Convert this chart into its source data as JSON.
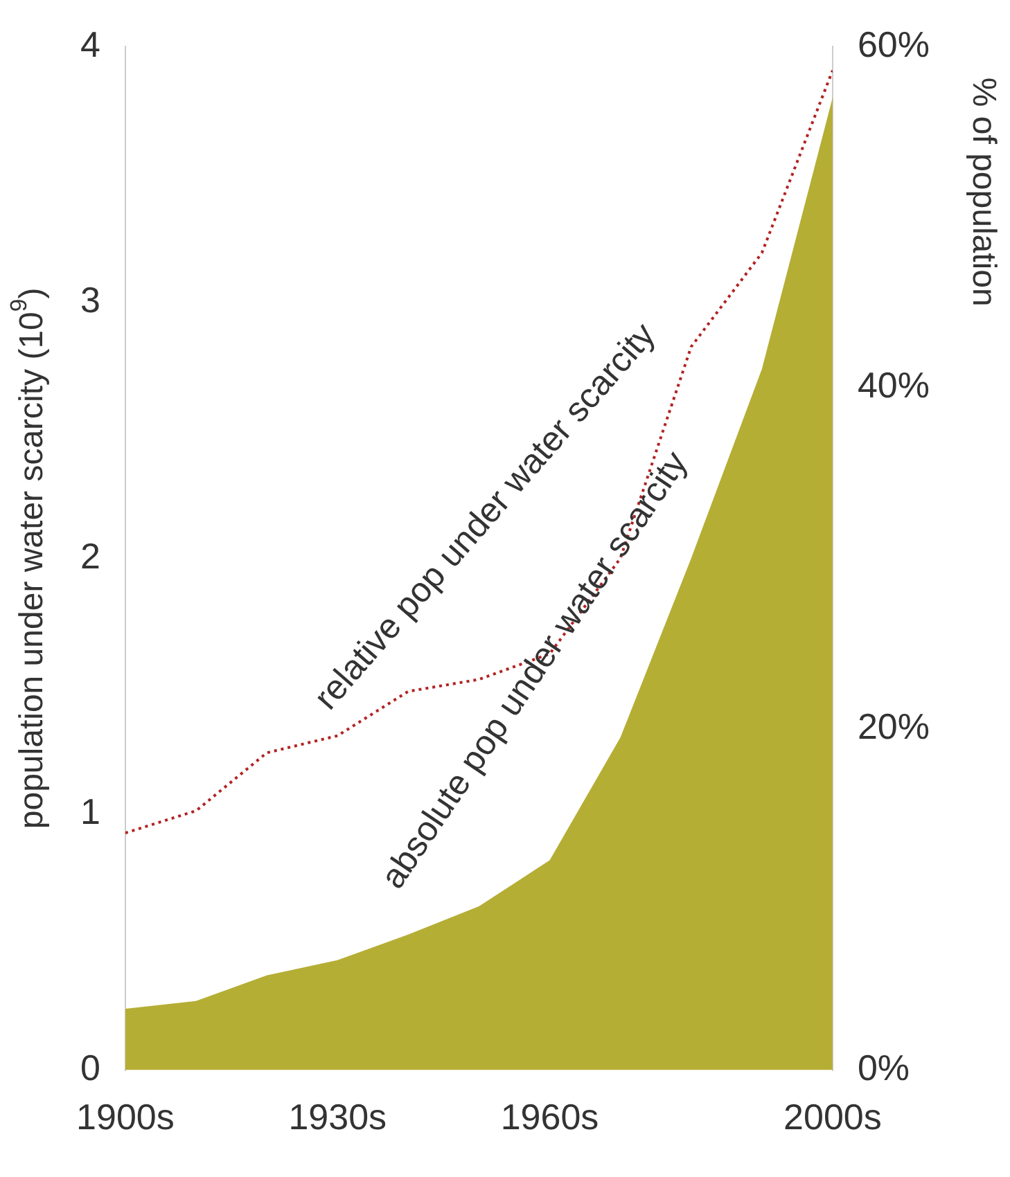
{
  "chart_data": {
    "type": "area",
    "ylabel": "population under water scarcity (10$^{9}$)",
    "y2label": "% of population",
    "x": [
      1900,
      1910,
      1920,
      1930,
      1940,
      1950,
      1960,
      1970,
      1980,
      1990,
      2000
    ],
    "xlim": [
      1900,
      2000
    ],
    "xticks": [
      {
        "value": 1900,
        "label": "1900s"
      },
      {
        "value": 1930,
        "label": "1930s"
      },
      {
        "value": 1960,
        "label": "1960s"
      },
      {
        "value": 2000,
        "label": "2000s"
      }
    ],
    "ylim": [
      0,
      4
    ],
    "yticks": [
      0,
      1,
      2,
      3,
      4
    ],
    "y2lim": [
      0,
      60
    ],
    "y2ticks": [
      {
        "value": 0,
        "label": "0%"
      },
      {
        "value": 20,
        "label": "20%"
      },
      {
        "value": 40,
        "label": "40%"
      },
      {
        "value": 60,
        "label": "60%"
      }
    ],
    "series": [
      {
        "color": "#b5ae35",
        "values": [
          0.24,
          0.27,
          0.37,
          0.43,
          0.53,
          0.64,
          0.82,
          1.3,
          2.0,
          2.74,
          3.8
        ]
      },
      {
        "type": "line",
        "axis": "y2",
        "color": "#b22222",
        "line_style": "dotted",
        "values": [
          13.9,
          15.2,
          18.6,
          19.6,
          22.2,
          22.9,
          24.4,
          30,
          42.4,
          47.9,
          58.6
        ]
      }
    ],
    "annotations": [
      "relative pop under water scarcity",
      "absolute pop under water scarcity"
    ],
    "grid": false,
    "legend": false
  }
}
